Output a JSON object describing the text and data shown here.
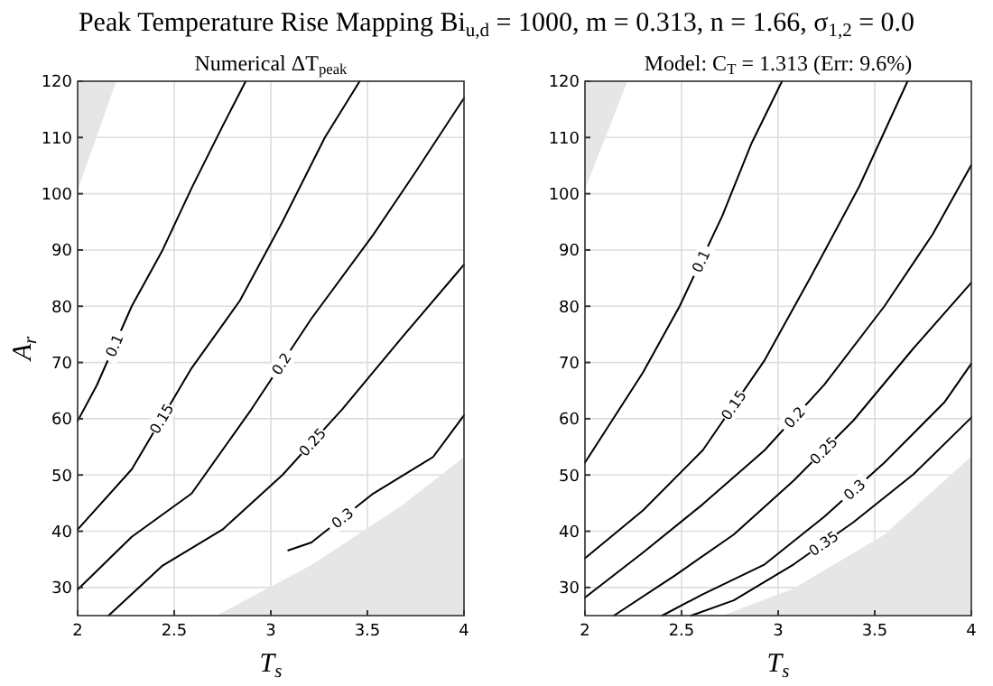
{
  "chart_data": [
    {
      "type": "line",
      "title": "Peak Temperature Rise Mapping Bi$_{u,d}$ = 1000, m = 0.313, n = 1.66, σ$_{1,2}$ = 0.0",
      "subtitle": "Numerical ΔT$_{peak}$",
      "xlabel": "T$_{s}$",
      "ylabel": "A$_{r}$",
      "xlim": [
        2,
        4
      ],
      "ylim": [
        25,
        120
      ],
      "xticks": [
        2,
        2.5,
        3,
        3.5,
        4
      ],
      "yticks": [
        30,
        40,
        50,
        60,
        70,
        80,
        90,
        100,
        110,
        120
      ],
      "grid": true,
      "series": [
        {
          "type": "area",
          "color": "#e6e6e6",
          "x": [
            2,
            2.1,
            2.2,
            2
          ],
          "values": [
            100.7,
            110.3,
            120,
            120
          ]
        },
        {
          "type": "area",
          "color": "#e6e6e6",
          "x": [
            2.72,
            3.21,
            3.68,
            4
          ],
          "values": [
            25,
            34,
            44.6,
            53.2
          ]
        },
        {
          "name": "0.1",
          "color": "#000000",
          "x": [
            2,
            2.1,
            2.28,
            2.44,
            2.59,
            2.75,
            2.87
          ],
          "values": [
            59.6,
            66,
            80,
            90,
            101,
            112,
            120
          ]
        },
        {
          "name": "0.15",
          "color": "#000000",
          "x": [
            2,
            2.28,
            2.59,
            2.84,
            3.06,
            3.28,
            3.46
          ],
          "values": [
            40.3,
            51,
            69,
            81,
            95,
            110,
            120
          ]
        },
        {
          "name": "0.2",
          "color": "#000000",
          "x": [
            2,
            2.28,
            2.59,
            2.9,
            3.21,
            3.53,
            3.74,
            4
          ],
          "values": [
            29.6,
            39,
            46.7,
            61.7,
            77.8,
            92.7,
            103.4,
            117
          ]
        },
        {
          "name": "0.25",
          "color": "#000000",
          "x": [
            2.16,
            2.44,
            2.75,
            3.06,
            3.37,
            3.68,
            4
          ],
          "values": [
            25,
            33.9,
            40.3,
            50,
            61.7,
            74.5,
            87.4
          ]
        },
        {
          "name": "0.3",
          "color": "#000000",
          "x": [
            3.09,
            3.21,
            3.53,
            3.84,
            4
          ],
          "values": [
            36.6,
            38,
            46.7,
            53.2,
            60.6
          ]
        }
      ]
    },
    {
      "type": "line",
      "title": "Model: C$_{T}$ = 1.313 (Err: 9.6%)",
      "xlabel": "T$_{s}$",
      "xlim": [
        2,
        4
      ],
      "ylim": [
        25,
        120
      ],
      "xticks": [
        2,
        2.5,
        3,
        3.5,
        4
      ],
      "yticks": [
        30,
        40,
        50,
        60,
        70,
        80,
        90,
        100,
        110,
        120
      ],
      "grid": true,
      "series": [
        {
          "type": "area",
          "color": "#e6e6e6",
          "x": [
            2,
            2.11,
            2.22,
            2
          ],
          "values": [
            100.8,
            110.4,
            120,
            120
          ]
        },
        {
          "type": "area",
          "color": "#e6e6e6",
          "x": [
            2.71,
            3.08,
            3.55,
            4
          ],
          "values": [
            25,
            29.8,
            39.4,
            53.3
          ]
        },
        {
          "name": "0.1",
          "color": "#000000",
          "x": [
            2,
            2.3,
            2.49,
            2.71,
            2.86,
            3.02
          ],
          "values": [
            52.2,
            68.2,
            80,
            96,
            108.8,
            120
          ]
        },
        {
          "name": "0.15",
          "color": "#000000",
          "x": [
            2,
            2.3,
            2.61,
            2.93,
            3.17,
            3.42,
            3.67
          ],
          "values": [
            35.2,
            43.7,
            54.4,
            70.4,
            85.3,
            101.3,
            120
          ]
        },
        {
          "name": "0.2",
          "color": "#000000",
          "x": [
            2,
            2.3,
            2.61,
            2.93,
            3.24,
            3.55,
            3.8,
            4
          ],
          "values": [
            28.2,
            36.2,
            44.8,
            54.4,
            66.1,
            80,
            92.8,
            105.1
          ]
        },
        {
          "name": "0.25",
          "color": "#000000",
          "x": [
            2.15,
            2.46,
            2.77,
            3.08,
            3.39,
            3.7,
            4
          ],
          "values": [
            25,
            32,
            39.4,
            49,
            59.7,
            72.5,
            84.2
          ]
        },
        {
          "name": "0.3",
          "color": "#000000",
          "x": [
            2.4,
            2.61,
            2.93,
            3.24,
            3.55,
            3.86,
            4
          ],
          "values": [
            25,
            28.8,
            34.1,
            42.6,
            52.2,
            62.9,
            69.8
          ]
        },
        {
          "name": "0.35",
          "color": "#000000",
          "x": [
            2.55,
            2.77,
            3.08,
            3.39,
            3.7,
            4
          ],
          "values": [
            25,
            27.7,
            34.1,
            41.6,
            50.1,
            60.2
          ]
        }
      ]
    }
  ]
}
